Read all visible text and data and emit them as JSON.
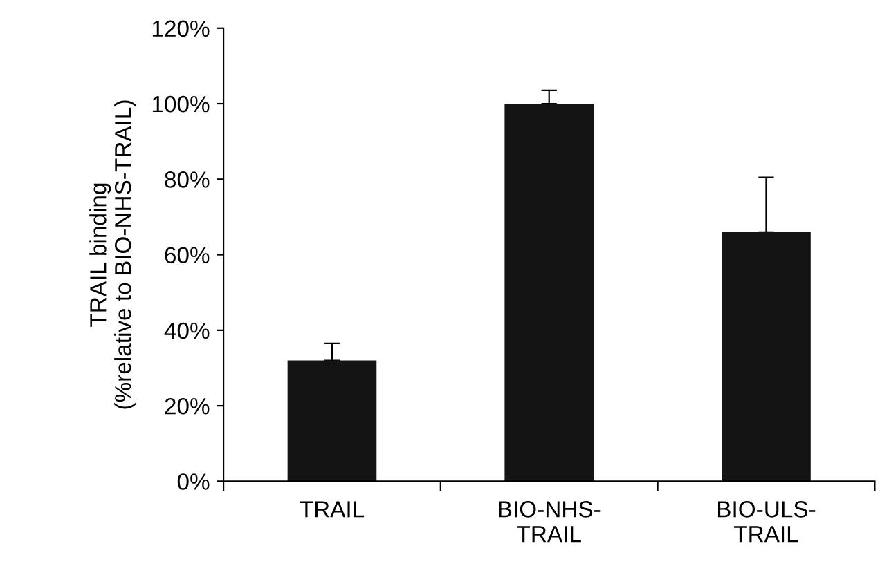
{
  "chart_data": {
    "type": "bar",
    "ylabel": "TRAIL binding\n(%relative to BIO-NHS-TRAIL)",
    "categories": [
      "TRAIL",
      "BIO-NHS-\nTRAIL",
      "BIO-ULS-\nTRAIL"
    ],
    "values": [
      32,
      100,
      66
    ],
    "errors": [
      [
        32,
        36.5
      ],
      [
        100,
        103.5
      ],
      [
        66,
        80.5
      ]
    ],
    "color": "#141414",
    "ylim": [
      0,
      120
    ],
    "yticks": [
      {
        "value": 0,
        "label": "0%"
      },
      {
        "value": 20,
        "label": "20%"
      },
      {
        "value": 40,
        "label": "40%"
      },
      {
        "value": 60,
        "label": "60%"
      },
      {
        "value": 80,
        "label": "80%"
      },
      {
        "value": 100,
        "label": "100%"
      },
      {
        "value": 120,
        "label": "120%"
      }
    ],
    "grid": false
  }
}
